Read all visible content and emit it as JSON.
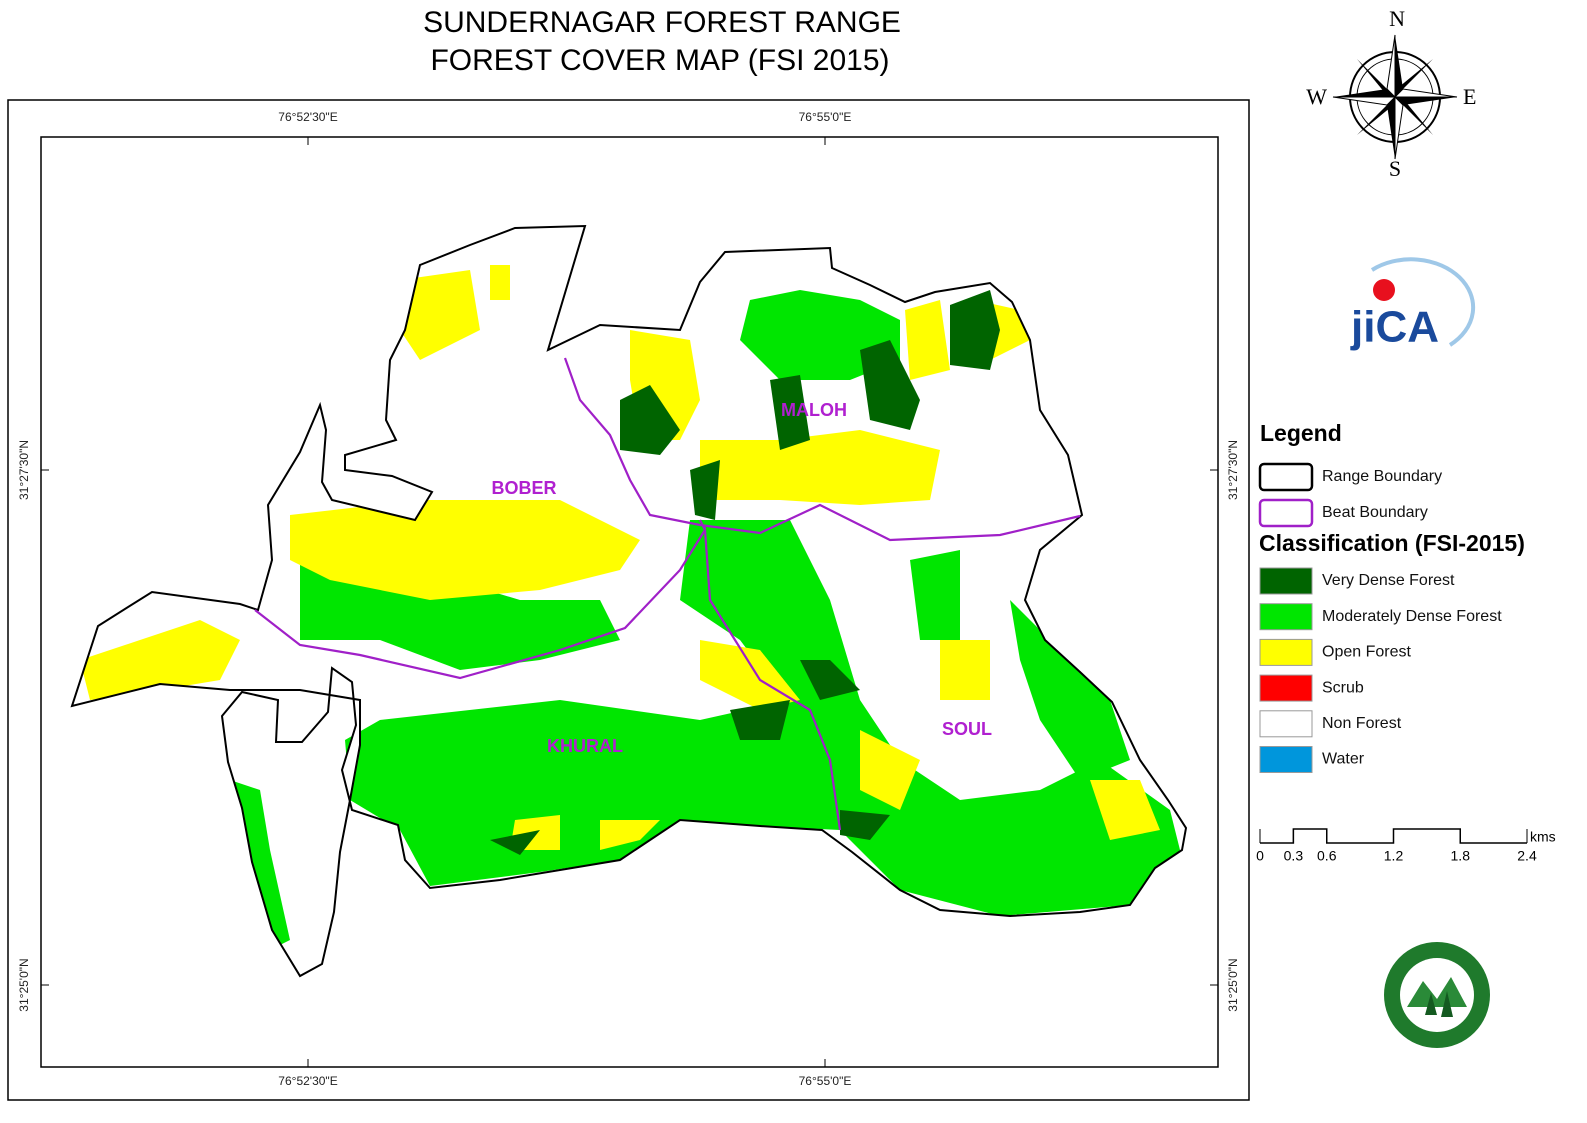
{
  "title": [
    "SUNDERNAGAR FOREST RANGE",
    "FOREST COVER MAP (FSI 2015)"
  ],
  "compass": {
    "north": "N",
    "east": "E",
    "south": "S",
    "west": "W"
  },
  "logo_text": "jiCA",
  "grid_labels": {
    "top": [
      "76°52'30\"E",
      "76°55'0\"E"
    ],
    "bottom": [
      "76°52'30\"E",
      "76°55'0\"E"
    ],
    "left": [
      "31°27'30\"N",
      "31°25'0\"N"
    ],
    "right": [
      "31°27'30\"N",
      "31°25'0\"N"
    ]
  },
  "beats": [
    "BOBER",
    "MALOH",
    "KHURAL",
    "SOUL"
  ],
  "legend": {
    "title": "Legend",
    "boundaries": [
      {
        "label": "Range Boundary",
        "color": "#000000"
      },
      {
        "label": "Beat Boundary",
        "color": "#a020c8"
      }
    ],
    "classification_title": "Classification (FSI-2015)",
    "classes": [
      {
        "label": "Very Dense Forest",
        "color": "#006400"
      },
      {
        "label": "Moderately Dense Forest",
        "color": "#00e600"
      },
      {
        "label": "Open Forest",
        "color": "#ffff00"
      },
      {
        "label": "Scrub",
        "color": "#ff0000"
      },
      {
        "label": "Non Forest",
        "color": "#ffffff"
      },
      {
        "label": "Water",
        "color": "#0096dc"
      }
    ]
  },
  "scale": {
    "ticks": [
      0,
      0.3,
      0.6,
      1.2,
      1.8,
      2.4
    ],
    "unit": "kms"
  }
}
